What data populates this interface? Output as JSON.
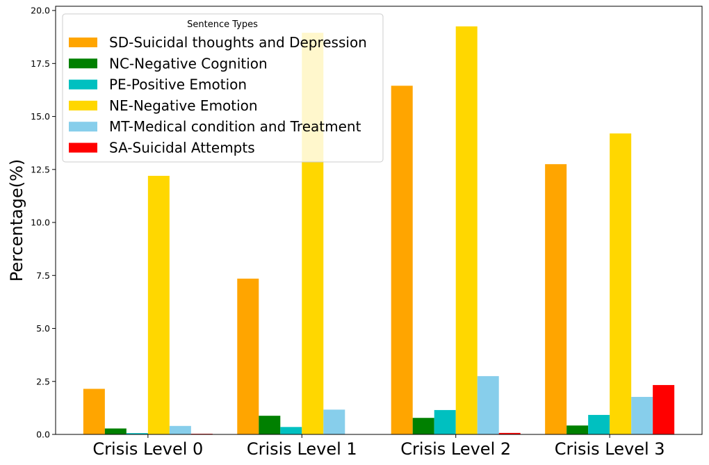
{
  "chart_data": {
    "type": "bar",
    "categories": [
      "Crisis Level 0",
      "Crisis Level 1",
      "Crisis Level 2",
      "Crisis Level 3"
    ],
    "series": [
      {
        "name": "SD-Suicidal thoughts and Depression",
        "color": "#FFA500",
        "values": [
          2.15,
          7.35,
          16.45,
          12.75
        ]
      },
      {
        "name": "NC-Negative Cognition",
        "color": "#008000",
        "values": [
          0.28,
          0.88,
          0.78,
          0.42
        ]
      },
      {
        "name": "PE-Positive Emotion",
        "color": "#00C0C0",
        "values": [
          0.06,
          0.35,
          1.15,
          0.92
        ]
      },
      {
        "name": "NE-Negative Emotion",
        "color": "#FFD700",
        "values": [
          12.2,
          18.95,
          19.25,
          14.2
        ]
      },
      {
        "name": "MT-Medical condition and Treatment",
        "color": "#87CEEB",
        "values": [
          0.4,
          1.17,
          2.75,
          1.77
        ]
      },
      {
        "name": "SA-Suicidal Attempts",
        "color": "#FF0000",
        "values": [
          0.03,
          0.0,
          0.07,
          2.33
        ]
      }
    ],
    "ylabel": "Percentage(%)",
    "xlabel": "",
    "ylim": [
      0,
      20.2
    ],
    "yticks": [
      "0.0",
      "2.5",
      "5.0",
      "7.5",
      "10.0",
      "12.5",
      "15.0",
      "17.5",
      "20.0"
    ],
    "legend": {
      "title": "Sentence Types",
      "placement": "top-left"
    },
    "grid": false
  }
}
